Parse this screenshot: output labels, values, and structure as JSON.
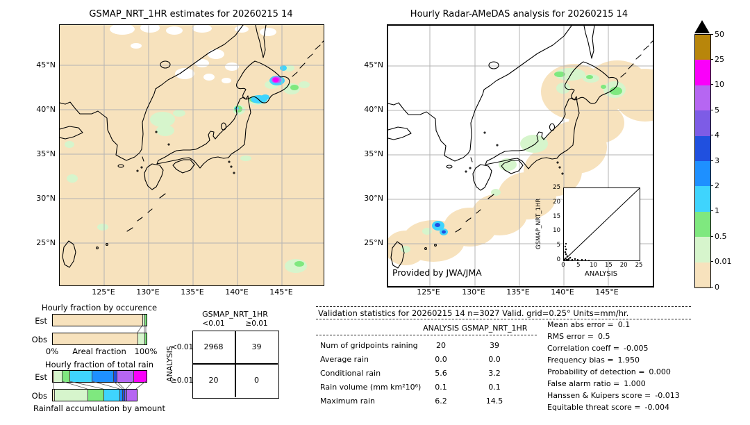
{
  "left_map": {
    "title": "GSMAP_NRT_1HR estimates for 20260215 14",
    "x_ticks": [
      "125°E",
      "130°E",
      "135°E",
      "140°E",
      "145°E"
    ],
    "y_ticks": [
      "45°N",
      "40°N",
      "35°N",
      "30°N",
      "25°N"
    ]
  },
  "right_map": {
    "title": "Hourly Radar-AMeDAS analysis for 20260215 14",
    "x_ticks": [
      "125°E",
      "130°E",
      "135°E",
      "140°E",
      "145°E"
    ],
    "y_ticks": [
      "45°N",
      "40°N",
      "35°N",
      "30°N",
      "25°N"
    ],
    "credit": "Provided by JWA/JMA",
    "inset": {
      "ylabel": "GSMAP_NRT_1HR",
      "xlabel": "ANALYSIS",
      "x_ticks": [
        "0",
        "5",
        "10",
        "15",
        "20",
        "25"
      ],
      "y_ticks": [
        "0",
        "5",
        "10",
        "15",
        "20",
        "25"
      ]
    }
  },
  "colorbar": {
    "labels": [
      "50",
      "25",
      "10",
      "5",
      "4",
      "3",
      "2",
      "1",
      "0.5",
      "0.01",
      "0"
    ],
    "colors": [
      "#b8860b",
      "#fa00fa",
      "#b666f2",
      "#7d5ce6",
      "#2050df",
      "#1e90ff",
      "#3fd4fd",
      "#7fe87f",
      "#d6f5cc",
      "#f7e2bd"
    ]
  },
  "occurrence_chart": {
    "title": "Hourly fraction by occurence",
    "row_labels": [
      "Est",
      "Obs"
    ],
    "x_left": "0%",
    "x_label": "Areal fraction",
    "x_right": "100%",
    "est_segments": [
      {
        "color": "#f7e2bd",
        "pct": 96.5
      },
      {
        "color": "#d6f5cc",
        "pct": 2
      },
      {
        "color": "#7fe87f",
        "pct": 1.5
      }
    ],
    "obs_segments": [
      {
        "color": "#f7e2bd",
        "pct": 91
      },
      {
        "color": "#d6f5cc",
        "pct": 7.5
      },
      {
        "color": "#7fe87f",
        "pct": 1.5
      }
    ]
  },
  "totalrain_chart": {
    "title": "Hourly fraction of total rain",
    "row_labels": [
      "Est",
      "Obs"
    ],
    "caption": "Rainfall accumulation by amount",
    "est_segments": [
      {
        "color": "#f7e2bd",
        "pct": 1.5
      },
      {
        "color": "#d6f5cc",
        "pct": 9
      },
      {
        "color": "#7fe87f",
        "pct": 8
      },
      {
        "color": "#3fd4fd",
        "pct": 24
      },
      {
        "color": "#1e90ff",
        "pct": 22.5
      },
      {
        "color": "#2050df",
        "pct": 4
      },
      {
        "color": "#b666f2",
        "pct": 17.5
      },
      {
        "color": "#fa00fa",
        "pct": 13.5
      }
    ],
    "obs_segments": [
      {
        "color": "#f7e2bd",
        "pct": 2
      },
      {
        "color": "#d6f5cc",
        "pct": 35.5
      },
      {
        "color": "#7fe87f",
        "pct": 17
      },
      {
        "color": "#3fd4fd",
        "pct": 17.5
      },
      {
        "color": "#1e90ff",
        "pct": 3
      },
      {
        "color": "#2050df",
        "pct": 2
      },
      {
        "color": "#7d5ce6",
        "pct": 2
      },
      {
        "color": "#b666f2",
        "pct": 10.5
      }
    ]
  },
  "contingency": {
    "col_group": "GSMAP_NRT_1HR",
    "row_group": "ANALYSIS",
    "col_labels": [
      "<0.01",
      "≥0.01"
    ],
    "row_labels": [
      "<0.01",
      "≥0.01"
    ],
    "values": [
      [
        "2968",
        "39"
      ],
      [
        "20",
        "0"
      ]
    ]
  },
  "stats": {
    "header": "Validation statistics for 20260215 14  n=3027 Valid. grid=0.25° Units=mm/hr.",
    "col_headers": [
      "ANALYSIS",
      "GSMAP_NRT_1HR"
    ],
    "rows": [
      {
        "label": "Num of gridpoints raining",
        "analysis": "20",
        "gsmap": "39"
      },
      {
        "label": "Average rain",
        "analysis": "0.0",
        "gsmap": "0.0"
      },
      {
        "label": "Conditional rain",
        "analysis": "5.6",
        "gsmap": "3.2"
      },
      {
        "label": "Rain volume (mm km²10⁶)",
        "analysis": "0.1",
        "gsmap": "0.1"
      },
      {
        "label": "Maximum rain",
        "analysis": "6.2",
        "gsmap": "14.5"
      }
    ],
    "scores": [
      {
        "label": "Mean abs error =",
        "value": "0.1"
      },
      {
        "label": "RMS error =",
        "value": "0.5"
      },
      {
        "label": "Correlation coeff =",
        "value": "-0.005"
      },
      {
        "label": "Frequency bias =",
        "value": "1.950"
      },
      {
        "label": "Probability of detection =",
        "value": "0.000"
      },
      {
        "label": "False alarm ratio =",
        "value": "1.000"
      },
      {
        "label": "Hanssen & Kuipers score =",
        "value": "-0.013"
      },
      {
        "label": "Equitable threat score =",
        "value": "-0.004"
      }
    ]
  },
  "chart_data": [
    {
      "type": "heatmap",
      "title": "GSMAP_NRT_1HR estimates for 20260215 14",
      "xlabel_ticks": [
        "125°E",
        "130°E",
        "135°E",
        "140°E",
        "145°E"
      ],
      "ylabel_ticks": [
        "45°N",
        "40°N",
        "35°N",
        "30°N",
        "25°N"
      ],
      "units": "mm/hr",
      "scale_values": [
        0,
        0.01,
        0.5,
        1,
        2,
        3,
        4,
        5,
        10,
        25,
        50
      ],
      "description": "GSMaP NRT hourly rain map over Japan; background 0 mm/hr (tan), white patches = no data near top; magenta cell ~10-25 mm/hr ringed by cyan near 43N 144.5E; cyan cells 1-2 mm/hr near 40N 140.5E; scattered pale-green 0.01-0.5 mm/hr patches"
    },
    {
      "type": "heatmap",
      "title": "Hourly Radar-AMeDAS analysis for 20260215 14",
      "credit": "Provided by JWA/JMA",
      "units": "mm/hr",
      "description": "Radar-AMeDAS analysis; white background outside radar range; broad 0-0.01 mm/hr tan band along the Japanese archipelago from 24N,122E to 45N,150E; pale-green 0.01-0.5 patches over Hokkaido and central Honshu; cyan/blue cells 1-4 mm/hr near 26.5N 127E"
    },
    {
      "type": "scatter",
      "title": "GSMAP_NRT_1HR vs ANALYSIS",
      "xlabel": "ANALYSIS",
      "ylabel": "GSMAP_NRT_1HR",
      "xlim": [
        0,
        25
      ],
      "ylim": [
        0,
        25
      ],
      "x_ticks": [
        0,
        5,
        10,
        15,
        20,
        25
      ],
      "y_ticks": [
        0,
        5,
        10,
        15,
        20,
        25
      ],
      "diagonal_line": true,
      "points_description": "points clustered near origin, roughly 0-7 mm/hr on both axes"
    },
    {
      "type": "bar",
      "title": "Hourly fraction by occurence",
      "stacked": true,
      "categories": [
        "Est",
        "Obs"
      ],
      "xlabel": "Areal fraction",
      "xlim_labels": [
        "0%",
        "100%"
      ],
      "series": [
        {
          "name": "Est",
          "values": [
            96.5,
            2,
            1.5
          ]
        },
        {
          "name": "Obs",
          "values": [
            91,
            7.5,
            1.5
          ]
        }
      ],
      "segment_colors": [
        "#f7e2bd",
        "#d6f5cc",
        "#7fe87f"
      ]
    },
    {
      "type": "bar",
      "title": "Hourly fraction of total rain",
      "stacked": true,
      "categories": [
        "Est",
        "Obs"
      ],
      "caption": "Rainfall accumulation by amount",
      "series": [
        {
          "name": "Est",
          "values": [
            1.5,
            9,
            8,
            24,
            22.5,
            4,
            17.5,
            13.5
          ]
        },
        {
          "name": "Obs",
          "values": [
            2,
            35.5,
            17,
            17.5,
            3,
            2,
            2,
            10.5
          ]
        }
      ],
      "segment_colors": [
        "#f7e2bd",
        "#d6f5cc",
        "#7fe87f",
        "#3fd4fd",
        "#1e90ff",
        "#2050df",
        "#b666f2",
        "#fa00fa"
      ]
    },
    {
      "type": "table",
      "title": "Contingency table",
      "col_group": "GSMAP_NRT_1HR",
      "row_group": "ANALYSIS",
      "columns": [
        "<0.01",
        "≥0.01"
      ],
      "rows": [
        "<0.01",
        "≥0.01"
      ],
      "values": [
        [
          2968,
          39
        ],
        [
          20,
          0
        ]
      ]
    },
    {
      "type": "table",
      "title": "Validation statistics for 20260215 14  n=3027 Valid. grid=0.25° Units=mm/hr.",
      "categories": [
        "Num of gridpoints raining",
        "Average rain",
        "Conditional rain",
        "Rain volume (mm km²10⁶)",
        "Maximum rain"
      ],
      "series": [
        {
          "name": "ANALYSIS",
          "values": [
            20,
            0.0,
            5.6,
            0.1,
            6.2
          ]
        },
        {
          "name": "GSMAP_NRT_1HR",
          "values": [
            39,
            0.0,
            3.2,
            0.1,
            14.5
          ]
        }
      ],
      "scores": {
        "Mean abs error": 0.1,
        "RMS error": 0.5,
        "Correlation coeff": -0.005,
        "Frequency bias": 1.95,
        "Probability of detection": 0.0,
        "False alarm ratio": 1.0,
        "Hanssen & Kuipers score": -0.013,
        "Equitable threat score": -0.004
      }
    }
  ]
}
